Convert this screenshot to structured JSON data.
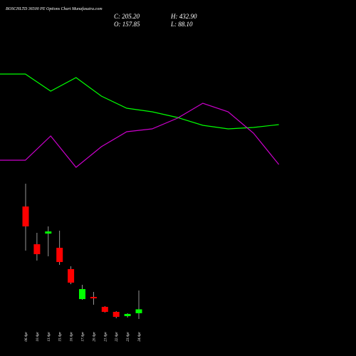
{
  "chart_data": [
    {
      "type": "candlestick",
      "title": "BOSCHLTD 36500 PE Options Chart Munafasutra.com",
      "stats": [
        "C: 205.20",
        "O: 157.85",
        "H: 432.90",
        "L: 88.10"
      ],
      "categories": [
        "06 Apr",
        "10 Apr",
        "13 Apr",
        "15 Apr",
        "16 Apr",
        "17 Apr",
        "20 Apr",
        "21 Apr",
        "22 Apr",
        "23 Apr",
        "24 Apr"
      ],
      "open": [
        1450,
        993,
        1122,
        950,
        692,
        329,
        355,
        235,
        174,
        123,
        157.85
      ],
      "high": [
        1726,
        1131,
        1209,
        1157,
        726,
        502,
        416,
        243,
        183,
        157,
        432.9
      ],
      "low": [
        916,
        795,
        847,
        743,
        510,
        321,
        261,
        166,
        97,
        105,
        88.1
      ],
      "close": [
        1209,
        873,
        1148,
        778,
        528,
        450,
        338,
        174,
        114,
        149,
        205.2
      ],
      "up_color": "#00ff00",
      "down_color": "#ff0000",
      "ylim": [
        70.9,
        1795
      ]
    },
    {
      "type": "line",
      "categories": [
        null,
        null,
        null,
        null,
        null,
        null,
        null,
        null,
        null,
        null,
        null,
        null
      ],
      "series": [
        {
          "color": "#00ff00",
          "values": [
            396,
            396,
            372,
            391,
            365,
            348,
            343,
            335,
            324,
            319,
            321,
            325
          ]
        },
        {
          "color": "#cc00cc",
          "values": [
            275,
            275,
            309,
            265,
            294,
            315,
            319,
            334,
            355,
            343,
            313,
            269
          ]
        }
      ],
      "ylim": [
        0,
        500
      ]
    }
  ]
}
